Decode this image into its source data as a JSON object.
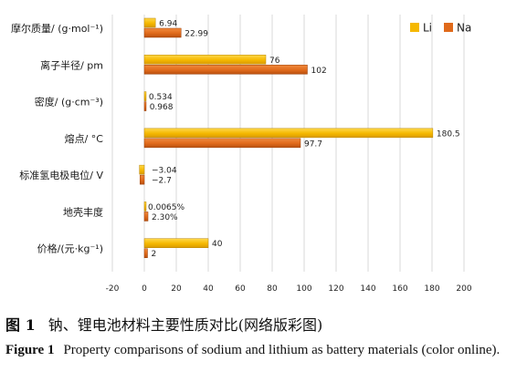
{
  "chart_data": {
    "type": "bar",
    "orientation": "horizontal",
    "categories": [
      "摩尔质量/ (g·mol⁻¹)",
      "离子半径/ pm",
      "密度/ (g·cm⁻³)",
      "熔点/ °C",
      "标准氢电极电位/ V",
      "地壳丰度",
      "价格/(元·kg⁻¹)"
    ],
    "series": [
      {
        "name": "Li",
        "color": "#f5b800",
        "values": [
          6.94,
          76,
          0.534,
          180.5,
          -3.04,
          0.0065,
          40
        ],
        "labels": [
          "6.94",
          "76",
          "0.534",
          "180.5",
          "−3.04",
          "0.0065%",
          "40"
        ]
      },
      {
        "name": "Na",
        "color": "#e06a1b",
        "values": [
          22.99,
          102,
          0.968,
          97.7,
          -2.7,
          2.3,
          2
        ],
        "labels": [
          "22.99",
          "102",
          "0.968",
          "97.7",
          "−2.7",
          "2.30%",
          "2"
        ]
      }
    ],
    "xlim": [
      -20,
      200
    ],
    "xticks": [
      "-20",
      "0",
      "20",
      "40",
      "60",
      "80",
      "100",
      "120",
      "140",
      "160",
      "180",
      "200"
    ],
    "grid": true,
    "legend": "top-right"
  },
  "caption": {
    "cn_num": "图 1",
    "cn_text": "钠、锂电池材料主要性质对比(网络版彩图)",
    "en_fig": "Figure 1",
    "en_text": "Property comparisons of sodium and lithium as battery materials (color online)."
  }
}
